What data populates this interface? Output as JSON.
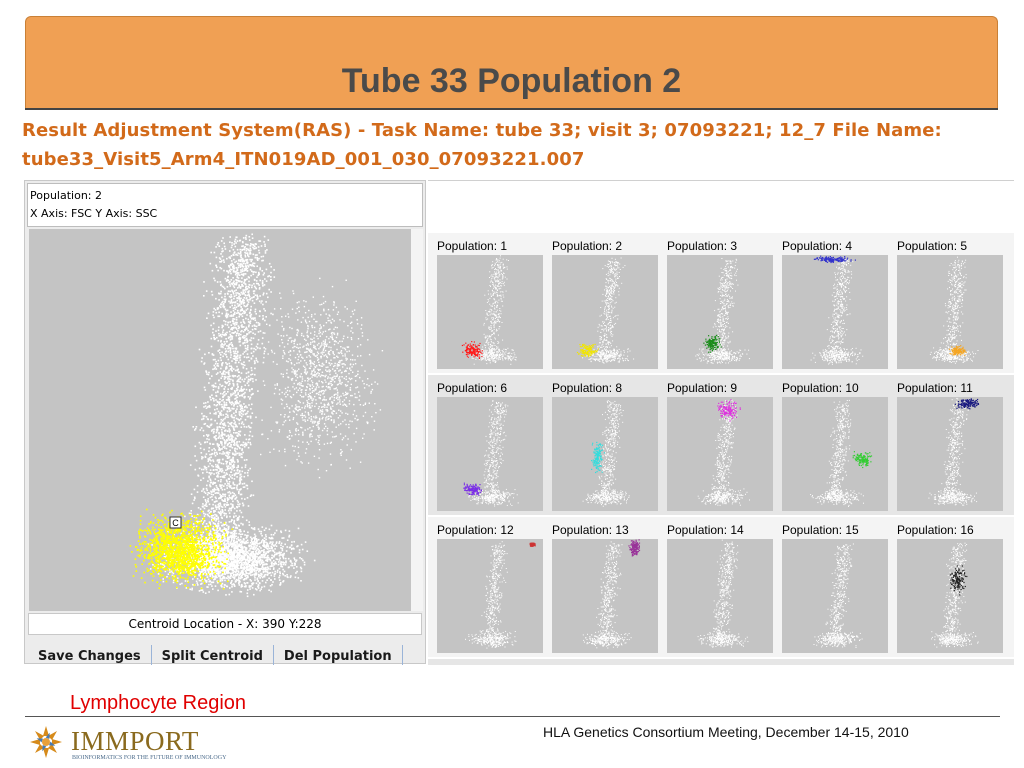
{
  "slide": {
    "title": "Tube 33 Population 2",
    "caption": "Lymphocyte Region",
    "meeting": "HLA Genetics Consortium Meeting, December 14-15, 2010",
    "logo_text": "IMMPORT",
    "logo_tagline": "BIOINFORMATICS FOR THE FUTURE OF IMMUNOLOGY"
  },
  "ras": {
    "line1": "Result Adjustment System(RAS) - Task Name: tube 33; visit 3; 07093221; 12_7  File Name:",
    "line2": "tube33_Visit5_Arm4_ITN019AD_001_030_07093221.007"
  },
  "main_panel": {
    "population_label": "Population: 2",
    "axes_label": "X Axis: FSC   Y Axis: SSC",
    "centroid_marker": "C",
    "centroid_text": "Centroid Location - X: 390   Y:228",
    "highlight_color": "#ffff00",
    "buttons": [
      "Save Changes",
      "Split Centroid",
      "Del Population"
    ]
  },
  "populations": [
    {
      "label": "Population: 1",
      "color": "#ff1a1a"
    },
    {
      "label": "Population: 2",
      "color": "#f2e600"
    },
    {
      "label": "Population: 3",
      "color": "#1a8c1a"
    },
    {
      "label": "Population: 4",
      "color": "#3333cc"
    },
    {
      "label": "Population: 5",
      "color": "#f5a623"
    },
    {
      "label": "Population: 6",
      "color": "#7a2ee6"
    },
    {
      "label": "Population: 8",
      "color": "#33dddd"
    },
    {
      "label": "Population: 9",
      "color": "#dd33dd"
    },
    {
      "label": "Population: 10",
      "color": "#33cc33"
    },
    {
      "label": "Population: 11",
      "color": "#1a1a80"
    },
    {
      "label": "Population: 12",
      "color": "#cc3333"
    },
    {
      "label": "Population: 13",
      "color": "#993399"
    },
    {
      "label": "Population: 14",
      "color": "#ffffff"
    },
    {
      "label": "Population: 15",
      "color": "#ffffff"
    },
    {
      "label": "Population: 16",
      "color": "#222222"
    }
  ]
}
